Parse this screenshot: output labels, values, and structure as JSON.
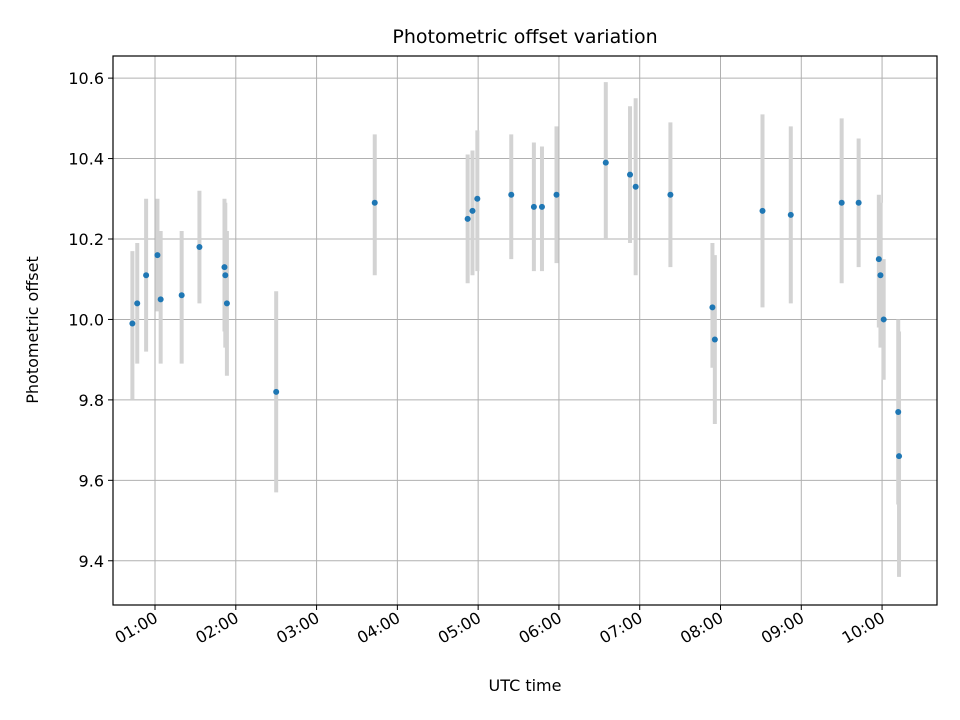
{
  "chart_data": {
    "type": "scatter",
    "title": "Photometric offset variation",
    "xlabel": "UTC time",
    "ylabel": "Photometric offset",
    "x_unit": "hours UTC",
    "xlim": [
      0.48,
      10.68
    ],
    "ylim": [
      9.29,
      10.655
    ],
    "grid": true,
    "x_tick_values": [
      1,
      2,
      3,
      4,
      5,
      6,
      7,
      8,
      9,
      10
    ],
    "x_tick_labels": [
      "01:00",
      "02:00",
      "03:00",
      "04:00",
      "05:00",
      "06:00",
      "07:00",
      "08:00",
      "09:00",
      "10:00"
    ],
    "y_tick_values": [
      9.4,
      9.6,
      9.8,
      10.0,
      10.2,
      10.4,
      10.6
    ],
    "y_tick_labels": [
      "9.4",
      "9.6",
      "9.8",
      "10.0",
      "10.2",
      "10.4",
      "10.6"
    ],
    "point_color": "#1f77b4",
    "errorbar_color": "#d3d3d3",
    "points": [
      {
        "x": 0.72,
        "y": 9.99,
        "lo": 9.8,
        "hi": 10.17
      },
      {
        "x": 0.78,
        "y": 10.04,
        "lo": 9.89,
        "hi": 10.19
      },
      {
        "x": 0.89,
        "y": 10.11,
        "lo": 9.92,
        "hi": 10.3
      },
      {
        "x": 1.03,
        "y": 10.16,
        "lo": 10.02,
        "hi": 10.3
      },
      {
        "x": 1.07,
        "y": 10.05,
        "lo": 9.89,
        "hi": 10.22
      },
      {
        "x": 1.33,
        "y": 10.06,
        "lo": 9.89,
        "hi": 10.22
      },
      {
        "x": 1.55,
        "y": 10.18,
        "lo": 10.04,
        "hi": 10.32
      },
      {
        "x": 1.86,
        "y": 10.13,
        "lo": 9.97,
        "hi": 10.3
      },
      {
        "x": 1.87,
        "y": 10.11,
        "lo": 9.93,
        "hi": 10.29
      },
      {
        "x": 1.89,
        "y": 10.04,
        "lo": 9.86,
        "hi": 10.22
      },
      {
        "x": 2.5,
        "y": 9.82,
        "lo": 9.57,
        "hi": 10.07
      },
      {
        "x": 3.72,
        "y": 10.29,
        "lo": 10.11,
        "hi": 10.46
      },
      {
        "x": 4.87,
        "y": 10.25,
        "lo": 10.09,
        "hi": 10.41
      },
      {
        "x": 4.93,
        "y": 10.27,
        "lo": 10.11,
        "hi": 10.42
      },
      {
        "x": 4.99,
        "y": 10.3,
        "lo": 10.12,
        "hi": 10.47
      },
      {
        "x": 5.41,
        "y": 10.31,
        "lo": 10.15,
        "hi": 10.46
      },
      {
        "x": 5.69,
        "y": 10.28,
        "lo": 10.12,
        "hi": 10.44
      },
      {
        "x": 5.79,
        "y": 10.28,
        "lo": 10.12,
        "hi": 10.43
      },
      {
        "x": 5.97,
        "y": 10.31,
        "lo": 10.14,
        "hi": 10.48
      },
      {
        "x": 6.58,
        "y": 10.39,
        "lo": 10.2,
        "hi": 10.59
      },
      {
        "x": 6.88,
        "y": 10.36,
        "lo": 10.19,
        "hi": 10.53
      },
      {
        "x": 6.95,
        "y": 10.33,
        "lo": 10.11,
        "hi": 10.55
      },
      {
        "x": 7.38,
        "y": 10.31,
        "lo": 10.13,
        "hi": 10.49
      },
      {
        "x": 7.9,
        "y": 10.03,
        "lo": 9.88,
        "hi": 10.19
      },
      {
        "x": 7.93,
        "y": 9.95,
        "lo": 9.74,
        "hi": 10.16
      },
      {
        "x": 8.52,
        "y": 10.27,
        "lo": 10.03,
        "hi": 10.51
      },
      {
        "x": 8.87,
        "y": 10.26,
        "lo": 10.04,
        "hi": 10.48
      },
      {
        "x": 9.5,
        "y": 10.29,
        "lo": 10.09,
        "hi": 10.5
      },
      {
        "x": 9.71,
        "y": 10.29,
        "lo": 10.13,
        "hi": 10.45
      },
      {
        "x": 9.96,
        "y": 10.15,
        "lo": 9.98,
        "hi": 10.31
      },
      {
        "x": 9.98,
        "y": 10.11,
        "lo": 9.93,
        "hi": 10.29
      },
      {
        "x": 10.02,
        "y": 10.0,
        "lo": 9.85,
        "hi": 10.15
      },
      {
        "x": 10.2,
        "y": 9.77,
        "lo": 9.54,
        "hi": 10.0
      },
      {
        "x": 10.21,
        "y": 9.66,
        "lo": 9.36,
        "hi": 9.97
      }
    ]
  }
}
